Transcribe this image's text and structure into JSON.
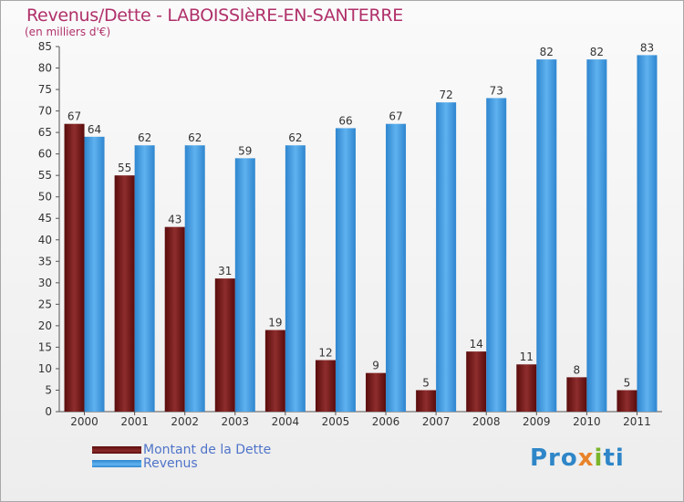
{
  "chart_data": {
    "type": "bar",
    "title": "Revenus/Dette - LABOISSIèRE-EN-SANTERRE",
    "subtitle": "(en milliers d'€)",
    "categories": [
      "2000",
      "2001",
      "2002",
      "2003",
      "2004",
      "2005",
      "2006",
      "2007",
      "2008",
      "2009",
      "2010",
      "2011"
    ],
    "series": [
      {
        "name": "Montant de la Dette",
        "color": "#7a1a1a",
        "values": [
          67,
          55,
          43,
          31,
          19,
          12,
          9,
          5,
          14,
          11,
          8,
          5
        ]
      },
      {
        "name": "Revenus",
        "color": "#4aa3e6",
        "values": [
          64,
          62,
          62,
          59,
          62,
          66,
          67,
          72,
          73,
          82,
          82,
          83
        ]
      }
    ],
    "ylim": [
      0,
      85
    ],
    "yticks": [
      0,
      5,
      10,
      15,
      20,
      25,
      30,
      35,
      40,
      45,
      50,
      55,
      60,
      65,
      70,
      75,
      80,
      85
    ],
    "grid": false,
    "legend_position": "bottom-left"
  },
  "logo": {
    "text": "Proxiti"
  }
}
